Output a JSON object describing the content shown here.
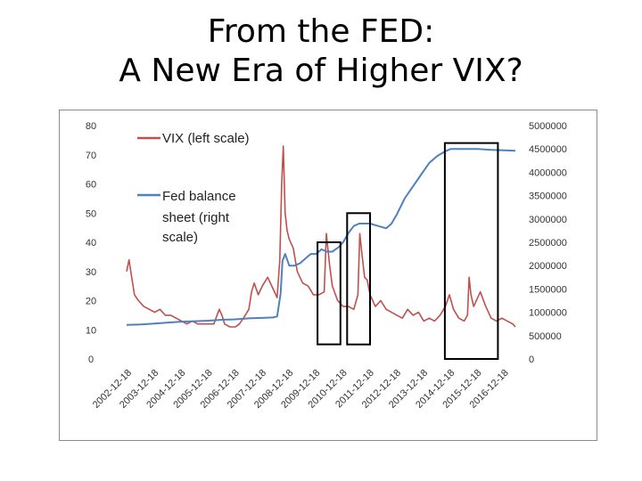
{
  "title": {
    "line1": "From the FED:",
    "line2": "A New Era of Higher VIX?"
  },
  "colors": {
    "vix": "#c0504d",
    "fed": "#4f81bd",
    "box": "#000000",
    "frame": "#8c8c8c"
  },
  "chart_data": {
    "type": "line",
    "title": "",
    "legend_position": "top-left",
    "legend": {
      "vix": "VIX (left scale)",
      "fed": [
        "Fed balance",
        "sheet (right",
        "scale)"
      ]
    },
    "y_left": {
      "ticks": [
        "0",
        "10",
        "20",
        "30",
        "40",
        "50",
        "60",
        "70",
        "80"
      ],
      "lim": [
        0,
        80
      ]
    },
    "y_right": {
      "ticks": [
        "0",
        "500000",
        "1000000",
        "1500000",
        "2000000",
        "2500000",
        "3000000",
        "3500000",
        "4000000",
        "4500000",
        "5000000"
      ],
      "lim": [
        0,
        5000000
      ]
    },
    "x_range": [
      2002.96,
      2017.4
    ],
    "x_ticks": [
      "2002-12-18",
      "2003-12-18",
      "2004-12-18",
      "2005-12-18",
      "2006-12-18",
      "2007-12-18",
      "2008-12-18",
      "2009-12-18",
      "2010-12-18",
      "2011-12-18",
      "2012-12-18",
      "2013-12-18",
      "2014-12-18",
      "2015-12-18",
      "2016-12-18"
    ],
    "series": [
      {
        "name": "VIX (left scale)",
        "axis": "left",
        "x": [
          2002.96,
          2003.05,
          2003.15,
          2003.25,
          2003.4,
          2003.6,
          2003.8,
          2004.0,
          2004.2,
          2004.4,
          2004.6,
          2004.8,
          2005.0,
          2005.2,
          2005.4,
          2005.6,
          2005.8,
          2006.0,
          2006.2,
          2006.4,
          2006.5,
          2006.6,
          2006.8,
          2007.0,
          2007.15,
          2007.3,
          2007.5,
          2007.6,
          2007.7,
          2007.85,
          2008.0,
          2008.2,
          2008.4,
          2008.55,
          2008.65,
          2008.72,
          2008.78,
          2008.85,
          2008.92,
          2009.0,
          2009.15,
          2009.3,
          2009.5,
          2009.7,
          2009.9,
          2010.1,
          2010.3,
          2010.38,
          2010.5,
          2010.6,
          2010.8,
          2011.0,
          2011.2,
          2011.4,
          2011.55,
          2011.62,
          2011.7,
          2011.8,
          2011.9,
          2012.0,
          2012.2,
          2012.4,
          2012.6,
          2012.8,
          2013.0,
          2013.2,
          2013.4,
          2013.6,
          2013.8,
          2014.0,
          2014.2,
          2014.4,
          2014.6,
          2014.8,
          2014.95,
          2015.1,
          2015.3,
          2015.5,
          2015.62,
          2015.68,
          2015.75,
          2015.85,
          2016.0,
          2016.1,
          2016.3,
          2016.5,
          2016.7,
          2016.9,
          2017.1,
          2017.3,
          2017.4
        ],
        "y": [
          30,
          34,
          28,
          22,
          20,
          18,
          17,
          16,
          17,
          15,
          15,
          14,
          13,
          12,
          13,
          12,
          12,
          12,
          12,
          17,
          15,
          12,
          11,
          11,
          12,
          14,
          17,
          23,
          26,
          22,
          25,
          28,
          24,
          21,
          34,
          60,
          73,
          50,
          44,
          41,
          38,
          30,
          26,
          25,
          22,
          22,
          23,
          43,
          32,
          25,
          20,
          18,
          18,
          17,
          22,
          43,
          36,
          28,
          27,
          22,
          18,
          20,
          17,
          16,
          15,
          14,
          17,
          15,
          16,
          13,
          14,
          13,
          15,
          18,
          22,
          17,
          14,
          13,
          15,
          28,
          22,
          18,
          21,
          23,
          18,
          14,
          13,
          14,
          13,
          12,
          11
        ]
      },
      {
        "name": "Fed balance sheet (right scale)",
        "axis": "right",
        "x": [
          2002.96,
          2003.5,
          2004.0,
          2004.5,
          2005.0,
          2005.5,
          2006.0,
          2006.5,
          2007.0,
          2007.5,
          2008.0,
          2008.4,
          2008.55,
          2008.68,
          2008.75,
          2008.85,
          2009.0,
          2009.2,
          2009.4,
          2009.6,
          2009.8,
          2010.0,
          2010.2,
          2010.4,
          2010.6,
          2010.85,
          2011.0,
          2011.2,
          2011.4,
          2011.6,
          2011.8,
          2012.0,
          2012.3,
          2012.6,
          2012.8,
          2013.0,
          2013.3,
          2013.6,
          2013.9,
          2014.2,
          2014.5,
          2014.8,
          2015.0,
          2015.5,
          2016.0,
          2016.5,
          2017.0,
          2017.4
        ],
        "y": [
          730000,
          740000,
          760000,
          780000,
          800000,
          810000,
          820000,
          840000,
          850000,
          870000,
          880000,
          890000,
          910000,
          1400000,
          2100000,
          2250000,
          2000000,
          2000000,
          2050000,
          2150000,
          2250000,
          2250000,
          2350000,
          2300000,
          2300000,
          2400000,
          2500000,
          2700000,
          2850000,
          2900000,
          2900000,
          2900000,
          2850000,
          2800000,
          2900000,
          3100000,
          3450000,
          3700000,
          3950000,
          4200000,
          4350000,
          4450000,
          4500000,
          4500000,
          4500000,
          4480000,
          4470000,
          4460000
        ]
      }
    ],
    "annotation_boxes": [
      {
        "label": "box-2010",
        "x": [
          2010.05,
          2010.9
        ],
        "y_left": [
          5,
          40
        ]
      },
      {
        "label": "box-2011",
        "x": [
          2011.15,
          2012.0
        ],
        "y_left": [
          5,
          50
        ]
      },
      {
        "label": "box-2014",
        "x": [
          2014.78,
          2016.75
        ],
        "y_left": [
          0,
          74
        ]
      }
    ]
  }
}
